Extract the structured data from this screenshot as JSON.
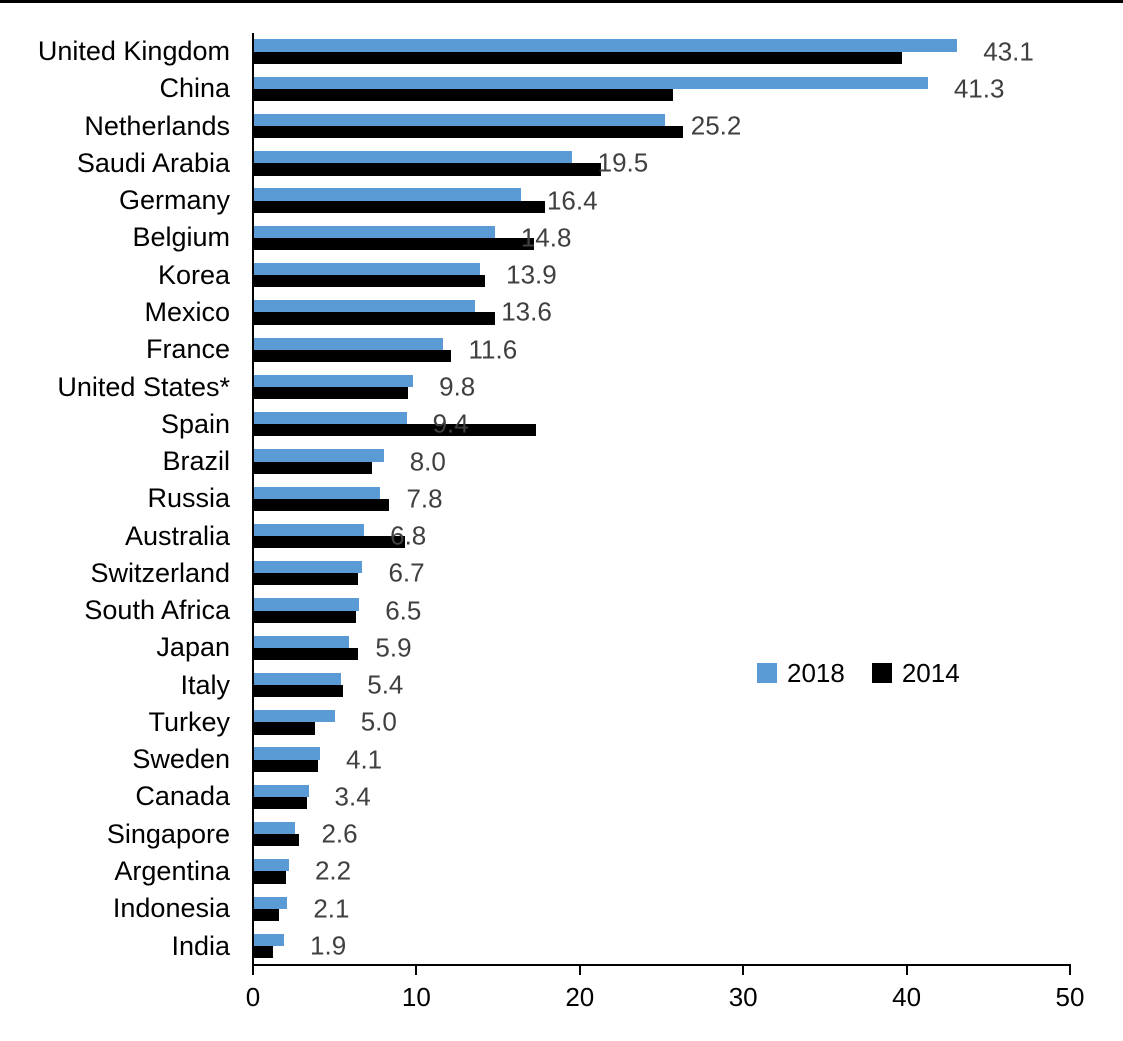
{
  "chart_data": {
    "type": "bar",
    "orientation": "horizontal",
    "title": "",
    "xlabel": "",
    "ylabel": "",
    "xlim": [
      0,
      50
    ],
    "x_ticks": [
      0,
      10,
      20,
      30,
      40,
      50
    ],
    "grid": false,
    "legend_position": "middle-right",
    "categories": [
      "United Kingdom",
      "China",
      "Netherlands",
      "Saudi Arabia",
      "Germany",
      "Belgium",
      "Korea",
      "Mexico",
      "France",
      "United States*",
      "Spain",
      "Brazil",
      "Russia",
      "Australia",
      "Switzerland",
      "South Africa",
      "Japan",
      "Italy",
      "Turkey",
      "Sweden",
      "Canada",
      "Singapore",
      "Argentina",
      "Indonesia",
      "India"
    ],
    "series": [
      {
        "name": "2018",
        "color": "#5B9BD5",
        "values": [
          43.1,
          41.3,
          25.2,
          19.5,
          16.4,
          14.8,
          13.9,
          13.6,
          11.6,
          9.8,
          9.4,
          8.0,
          7.8,
          6.8,
          6.7,
          6.5,
          5.9,
          5.4,
          5.0,
          4.1,
          3.4,
          2.6,
          2.2,
          2.1,
          1.9
        ],
        "data_labels": [
          "43.1",
          "41.3",
          "25.2",
          "19.5",
          "16.4",
          "14.8",
          "13.9",
          "13.6",
          "11.6",
          "9.8",
          "9.4",
          "8.0",
          "7.8",
          "6.8",
          "6.7",
          "6.5",
          "5.9",
          "5.4",
          "5.0",
          "4.1",
          "3.4",
          "2.6",
          "2.2",
          "2.1",
          "1.9"
        ]
      },
      {
        "name": "2014",
        "color": "#000000",
        "values": [
          39.7,
          25.7,
          26.3,
          21.3,
          17.9,
          17.2,
          14.2,
          14.8,
          12.1,
          9.5,
          17.3,
          7.3,
          8.3,
          9.3,
          6.4,
          6.3,
          6.4,
          5.5,
          3.8,
          4.0,
          3.3,
          2.8,
          2.0,
          1.6,
          1.2
        ]
      }
    ]
  },
  "legend": {
    "items": [
      {
        "label": "2018",
        "color": "#5B9BD5"
      },
      {
        "label": "2014",
        "color": "#000000"
      }
    ]
  },
  "colors": {
    "bar_2018": "#5B9BD5",
    "bar_2014": "#000000",
    "value_label": "#404040",
    "axis": "#000000",
    "background": "#ffffff"
  }
}
